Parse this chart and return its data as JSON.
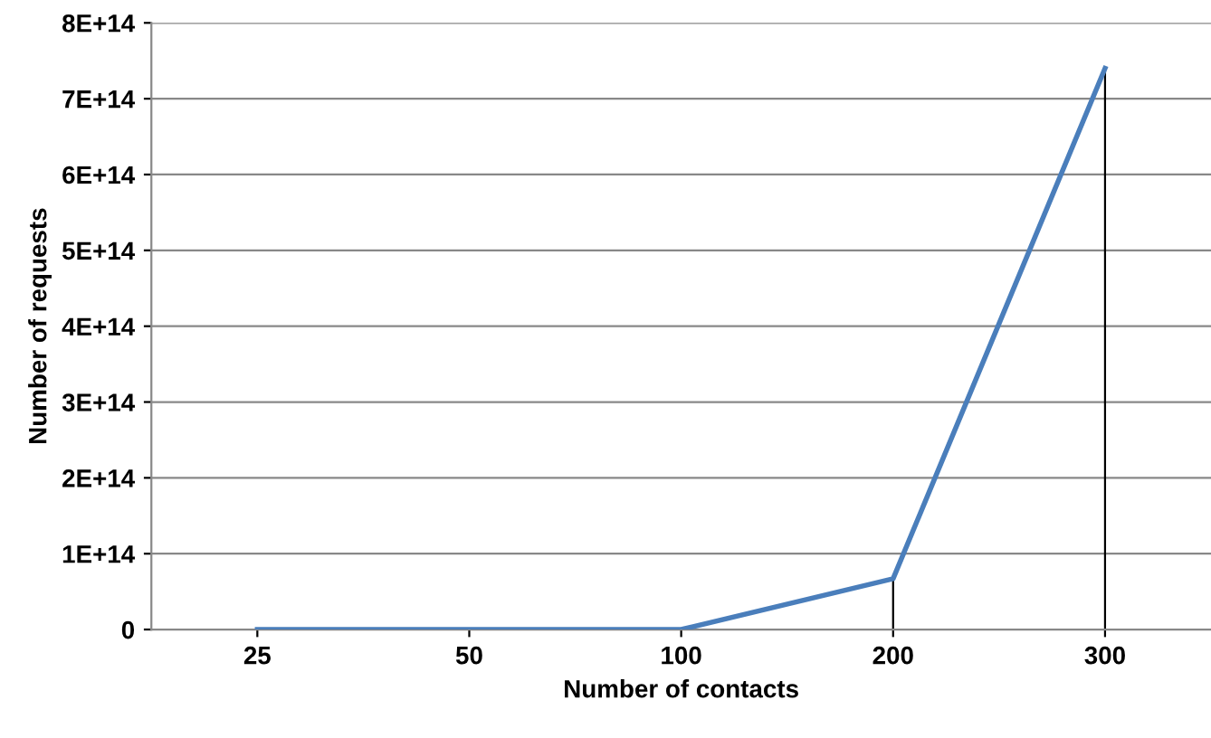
{
  "chart_data": {
    "type": "line",
    "xlabel": "Number of contacts",
    "ylabel": "Number of requests",
    "categories": [
      "25",
      "50",
      "100",
      "200",
      "300"
    ],
    "series": [
      {
        "color": "#4a7ebb",
        "values": [
          0,
          0,
          0,
          67000000000000.0,
          740000000000000.0
        ],
        "errors": [
          null,
          null,
          null,
          [
            0,
            67000000000000.0
          ],
          [
            0,
            740000000000000.0
          ]
        ]
      }
    ],
    "ylim": [
      0,
      800000000000000.0
    ],
    "yticks": [
      0,
      {
        "value": 100000000000000.0,
        "label": "1E+14"
      },
      {
        "value": 200000000000000.0,
        "label": "2E+14"
      },
      {
        "value": 300000000000000.0,
        "label": "3E+14"
      },
      {
        "value": 400000000000000.0,
        "label": "4E+14"
      },
      {
        "value": 500000000000000.0,
        "label": "5E+14"
      },
      {
        "value": 600000000000000.0,
        "label": "6E+14"
      },
      {
        "value": 700000000000000.0,
        "label": "7E+14"
      },
      {
        "value": 800000000000000.0,
        "label": "8E+14"
      }
    ],
    "grid": "y",
    "legend": false,
    "marker": "none",
    "line_style": "solid"
  }
}
